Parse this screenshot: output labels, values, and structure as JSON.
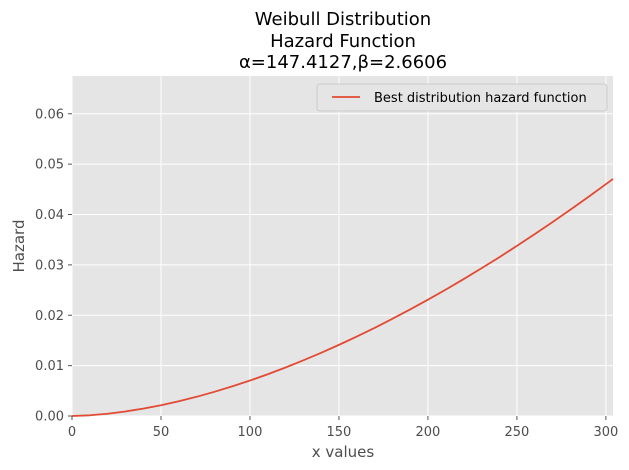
{
  "chart_data": {
    "type": "line",
    "title_lines": [
      "Weibull Distribution",
      "Hazard Function",
      "α=147.4127,β=2.6606"
    ],
    "xlabel": "x values",
    "ylabel": "Hazard",
    "xlim": [
      0,
      304
    ],
    "ylim": [
      0,
      0.0675
    ],
    "x_ticks": [
      0,
      50,
      100,
      150,
      200,
      250,
      300
    ],
    "x_tick_labels": [
      "0",
      "50",
      "100",
      "150",
      "200",
      "250",
      "300"
    ],
    "y_ticks": [
      0,
      0.01,
      0.02,
      0.03,
      0.04,
      0.05,
      0.06
    ],
    "y_tick_labels": [
      "0.00",
      "0.01",
      "0.02",
      "0.03",
      "0.04",
      "0.05",
      "0.06"
    ],
    "grid": true,
    "legend_position": "top-right",
    "series": [
      {
        "name": "Best distribution hazard function",
        "color": "#e24a33",
        "x": [
          0,
          10,
          20,
          30,
          40,
          50,
          60,
          70,
          80,
          90,
          100,
          110,
          120,
          130,
          140,
          150,
          160,
          170,
          180,
          190,
          200,
          210,
          220,
          230,
          240,
          250,
          260,
          270,
          280,
          290,
          300,
          304
        ],
        "y": [
          0,
          0.00014,
          0.00045,
          0.0009,
          0.00146,
          0.00214,
          0.00293,
          0.00381,
          0.0048,
          0.00588,
          0.00704,
          0.00829,
          0.00963,
          0.01105,
          0.01254,
          0.01412,
          0.01577,
          0.01749,
          0.01929,
          0.02115,
          0.02309,
          0.02509,
          0.02716,
          0.0293,
          0.0315,
          0.03377,
          0.0361,
          0.03849,
          0.04094,
          0.04345,
          0.04602,
          0.04706
        ]
      }
    ]
  },
  "colors": {
    "plot_background": "#e5e5e5",
    "grid": "#ffffff",
    "line": "#e24a33"
  }
}
